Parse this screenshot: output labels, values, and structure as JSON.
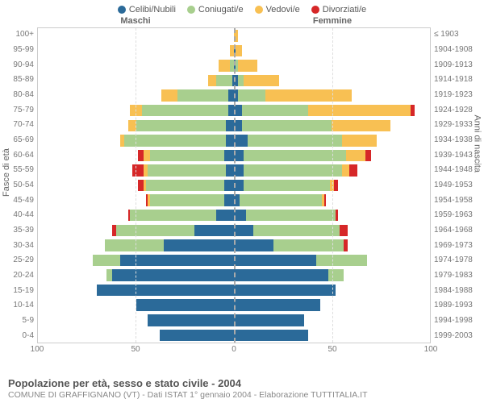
{
  "chart": {
    "type": "population-pyramid",
    "x_max": 100,
    "x_ticks": [
      100,
      50,
      0,
      50,
      100
    ],
    "background_color": "#ffffff",
    "grid_color": "#dddddd",
    "axis_color": "#cccccc",
    "center_line_color": "#aaaaaa",
    "label_fontsize": 10,
    "title_fontsize": 13,
    "legend": [
      {
        "label": "Celibi/Nubili",
        "color": "#2b6a99"
      },
      {
        "label": "Coniugati/e",
        "color": "#a8cf8e"
      },
      {
        "label": "Vedovi/e",
        "color": "#f8c053"
      },
      {
        "label": "Divorziati/e",
        "color": "#d62728"
      }
    ],
    "header_m": "Maschi",
    "header_f": "Femmine",
    "ylabel_left": "Fasce di età",
    "ylabel_right": "Anni di nascita",
    "age_groups": [
      "100+",
      "95-99",
      "90-94",
      "85-89",
      "80-84",
      "75-79",
      "70-74",
      "65-69",
      "60-64",
      "55-59",
      "50-54",
      "45-49",
      "40-44",
      "35-39",
      "30-34",
      "25-29",
      "20-24",
      "15-19",
      "10-14",
      "5-9",
      "0-4"
    ],
    "birth_years": [
      "≤ 1903",
      "1904-1908",
      "1909-1913",
      "1914-1918",
      "1919-1923",
      "1924-1928",
      "1929-1933",
      "1934-1938",
      "1939-1943",
      "1944-1948",
      "1949-1953",
      "1954-1958",
      "1959-1963",
      "1964-1968",
      "1969-1973",
      "1974-1978",
      "1979-1983",
      "1984-1988",
      "1989-1993",
      "1994-1998",
      "1999-2003"
    ],
    "maschi": [
      {
        "c": 0,
        "m": 0,
        "v": 0,
        "d": 0
      },
      {
        "c": 0,
        "m": 0,
        "v": 2,
        "d": 0
      },
      {
        "c": 0,
        "m": 2,
        "v": 6,
        "d": 0
      },
      {
        "c": 1,
        "m": 8,
        "v": 4,
        "d": 0
      },
      {
        "c": 3,
        "m": 26,
        "v": 8,
        "d": 0
      },
      {
        "c": 3,
        "m": 44,
        "v": 6,
        "d": 0
      },
      {
        "c": 4,
        "m": 46,
        "v": 4,
        "d": 0
      },
      {
        "c": 4,
        "m": 52,
        "v": 2,
        "d": 0
      },
      {
        "c": 5,
        "m": 38,
        "v": 3,
        "d": 3
      },
      {
        "c": 4,
        "m": 40,
        "v": 2,
        "d": 6
      },
      {
        "c": 5,
        "m": 40,
        "v": 1,
        "d": 3
      },
      {
        "c": 5,
        "m": 38,
        "v": 1,
        "d": 1
      },
      {
        "c": 9,
        "m": 44,
        "v": 0,
        "d": 1
      },
      {
        "c": 20,
        "m": 40,
        "v": 0,
        "d": 2
      },
      {
        "c": 36,
        "m": 30,
        "v": 0,
        "d": 0
      },
      {
        "c": 58,
        "m": 14,
        "v": 0,
        "d": 0
      },
      {
        "c": 62,
        "m": 3,
        "v": 0,
        "d": 0
      },
      {
        "c": 70,
        "m": 0,
        "v": 0,
        "d": 0
      },
      {
        "c": 50,
        "m": 0,
        "v": 0,
        "d": 0
      },
      {
        "c": 44,
        "m": 0,
        "v": 0,
        "d": 0
      },
      {
        "c": 38,
        "m": 0,
        "v": 0,
        "d": 0
      }
    ],
    "femmine": [
      {
        "c": 0,
        "m": 0,
        "v": 2,
        "d": 0
      },
      {
        "c": 1,
        "m": 0,
        "v": 3,
        "d": 0
      },
      {
        "c": 1,
        "m": 1,
        "v": 10,
        "d": 0
      },
      {
        "c": 2,
        "m": 3,
        "v": 18,
        "d": 0
      },
      {
        "c": 2,
        "m": 14,
        "v": 44,
        "d": 0
      },
      {
        "c": 4,
        "m": 34,
        "v": 52,
        "d": 2
      },
      {
        "c": 4,
        "m": 46,
        "v": 30,
        "d": 0
      },
      {
        "c": 7,
        "m": 48,
        "v": 18,
        "d": 0
      },
      {
        "c": 5,
        "m": 52,
        "v": 10,
        "d": 3
      },
      {
        "c": 5,
        "m": 50,
        "v": 4,
        "d": 4
      },
      {
        "c": 5,
        "m": 44,
        "v": 2,
        "d": 2
      },
      {
        "c": 3,
        "m": 42,
        "v": 1,
        "d": 1
      },
      {
        "c": 6,
        "m": 46,
        "v": 0,
        "d": 1
      },
      {
        "c": 10,
        "m": 44,
        "v": 0,
        "d": 4
      },
      {
        "c": 20,
        "m": 36,
        "v": 0,
        "d": 2
      },
      {
        "c": 42,
        "m": 26,
        "v": 0,
        "d": 0
      },
      {
        "c": 48,
        "m": 8,
        "v": 0,
        "d": 0
      },
      {
        "c": 52,
        "m": 0,
        "v": 0,
        "d": 0
      },
      {
        "c": 44,
        "m": 0,
        "v": 0,
        "d": 0
      },
      {
        "c": 36,
        "m": 0,
        "v": 0,
        "d": 0
      },
      {
        "c": 38,
        "m": 0,
        "v": 0,
        "d": 0
      }
    ]
  },
  "footer": {
    "title": "Popolazione per età, sesso e stato civile - 2004",
    "subtitle": "COMUNE DI GRAFFIGNANO (VT) - Dati ISTAT 1° gennaio 2004 - Elaborazione TUTTITALIA.IT"
  }
}
